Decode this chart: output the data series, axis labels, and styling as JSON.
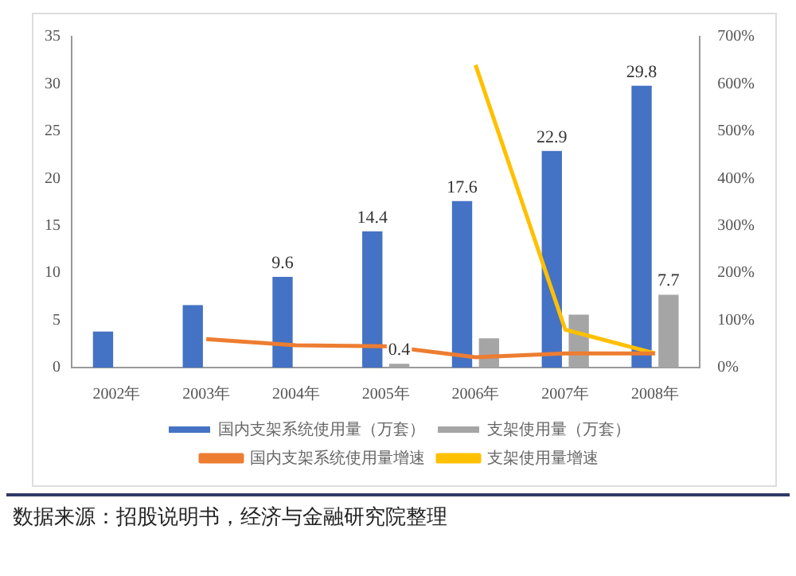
{
  "chart_data": {
    "type": "bar",
    "categories": [
      "2002年",
      "2003年",
      "2004年",
      "2005年",
      "2006年",
      "2007年",
      "2008年"
    ],
    "series": [
      {
        "name": "国内支架系统使用量（万套）",
        "color": "#4472c4",
        "values": [
          3.8,
          6.6,
          9.6,
          14.4,
          17.6,
          22.9,
          29.8
        ],
        "value_labels": [
          null,
          null,
          "9.6",
          "14.4",
          "17.6",
          "22.9",
          "29.8"
        ]
      },
      {
        "name": "支架使用量（万套）",
        "color": "#a5a5a5",
        "values": [
          null,
          null,
          null,
          0.4,
          3.1,
          5.6,
          7.7
        ],
        "value_labels": [
          null,
          null,
          null,
          "0.4",
          null,
          null,
          "7.7"
        ]
      },
      {
        "name": "国内支架系统使用量增速",
        "type": "line",
        "axis": "y2",
        "color": "#ed7d31",
        "values": [
          null,
          60,
          47,
          45,
          22,
          30,
          30
        ]
      },
      {
        "name": "支架使用量增速",
        "type": "line",
        "axis": "y2",
        "color": "#ffc000",
        "values": [
          null,
          null,
          null,
          null,
          640,
          80,
          30
        ]
      }
    ],
    "ylim": [
      0,
      35
    ],
    "yticks": [
      0,
      5,
      10,
      15,
      20,
      25,
      30,
      35
    ],
    "y2lim": [
      0,
      700
    ],
    "y2ticks": [
      {
        "value": 0,
        "label": "0%"
      },
      {
        "value": 100,
        "label": "100%"
      },
      {
        "value": 200,
        "label": "200%"
      },
      {
        "value": 300,
        "label": "300%"
      },
      {
        "value": 400,
        "label": "400%"
      },
      {
        "value": 500,
        "label": "500%"
      },
      {
        "value": 600,
        "label": "600%"
      },
      {
        "value": 700,
        "label": "700%"
      }
    ],
    "grid": false,
    "legend": "bottom",
    "marker": "none",
    "line_style": "solid",
    "annotations": [
      "数据来源：招股说明书，经济与金融研究院整理"
    ]
  }
}
